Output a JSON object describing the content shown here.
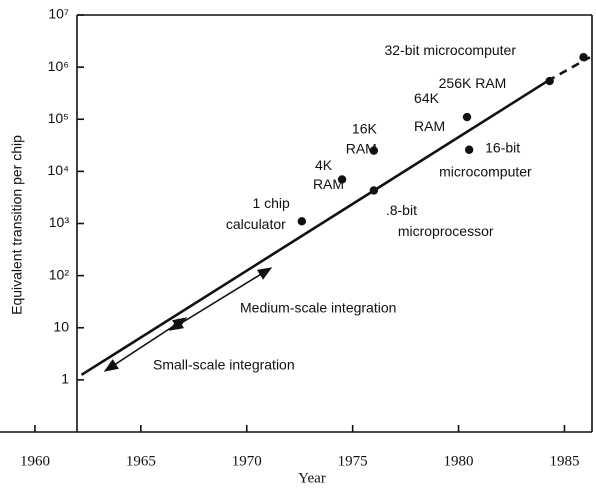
{
  "chart_data": {
    "type": "scatter",
    "xlabel": "Year",
    "ylabel": "Equivalent transition per chip",
    "log_y": true,
    "xlim": [
      1958.35,
      1986.3
    ],
    "ylim": [
      0.1,
      10000000
    ],
    "xticks": [
      1960,
      1965,
      1970,
      1975,
      1980,
      1985
    ],
    "yticks": [
      1,
      10,
      {
        "value": 100,
        "label": "10²"
      },
      {
        "value": 1000,
        "label": "10³"
      },
      {
        "value": 10000,
        "label": "10⁴"
      },
      {
        "value": 100000,
        "label": "10⁵"
      },
      {
        "value": 1000000,
        "label": "10⁶"
      },
      {
        "value": 10000000,
        "label": "10⁷"
      }
    ],
    "color": "#111111",
    "points": [
      {
        "label": [
          "1 chip",
          "calculator"
        ],
        "x": 1972.6,
        "value": 1100
      },
      {
        "label": [
          "4K",
          "RAM"
        ],
        "x": 1974.5,
        "value": 7000
      },
      {
        "label": [
          "16K",
          "RAM"
        ],
        "x": 1976.0,
        "value": 25000
      },
      {
        "label": [
          ".8-bit",
          "microprocessor"
        ],
        "x": 1976.0,
        "value": 4300
      },
      {
        "label": [
          "64K",
          "RAM"
        ],
        "x": 1980.4,
        "value": 110000
      },
      {
        "label": [
          "16-bit",
          "microcomputer"
        ],
        "x": 1980.5,
        "value": 26000
      },
      {
        "label": [
          "256K RAM"
        ],
        "x": 1984.3,
        "value": 540000
      },
      {
        "label": [
          "32-bit microcomputer"
        ],
        "x": 1985.9,
        "value": 1550000
      }
    ],
    "trend": {
      "x": [
        1962.2,
        1984.2
      ],
      "values": [
        1.25,
        540000
      ]
    },
    "projection": {
      "x": [
        1984.2,
        1986.2
      ],
      "values": [
        540000,
        1550000
      ]
    },
    "annotations": [
      "Medium-scale integration",
      "Small-scale integration"
    ]
  }
}
